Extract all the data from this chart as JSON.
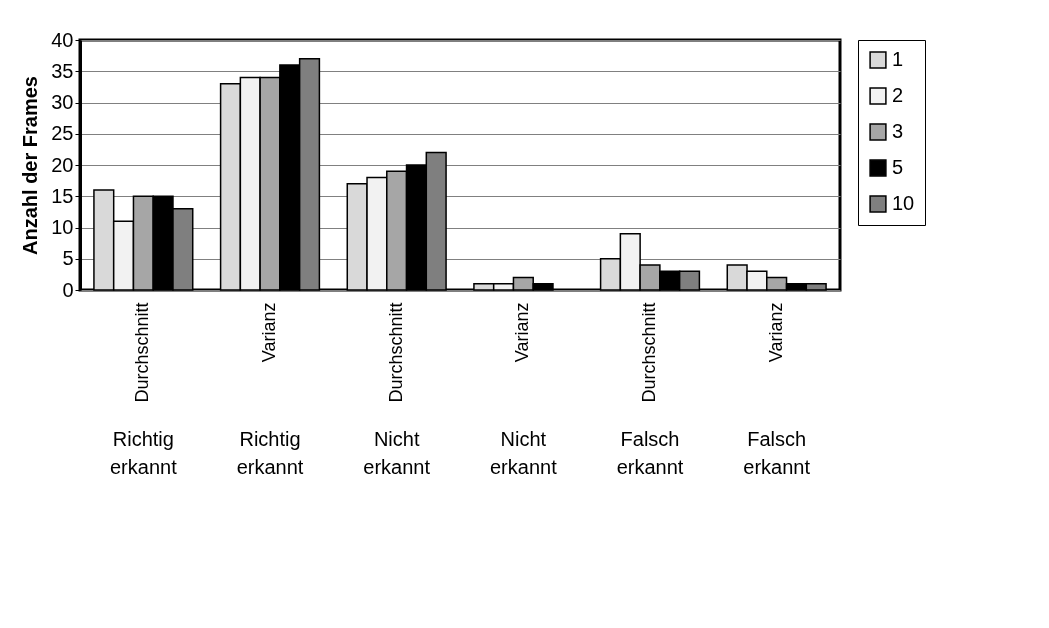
{
  "chart_data": {
    "type": "bar",
    "ylabel": "Anzahl der Frames",
    "categories": [
      "Durchschnitt",
      "Varianz",
      "Durchschnitt",
      "Varianz",
      "Durchschnitt",
      "Varianz"
    ],
    "annotations": [
      "Richtig erkannt",
      "Richtig erkannt",
      "Nicht erkannt",
      "Nicht erkannt",
      "Falsch erkannt",
      "Falsch erkannt"
    ],
    "series": [
      {
        "name": "1",
        "color": "#d9d9d9",
        "values": [
          16,
          33,
          17,
          1,
          5,
          4
        ]
      },
      {
        "name": "2",
        "color": "#f2f2f2",
        "values": [
          11,
          34,
          18,
          1,
          9,
          3
        ]
      },
      {
        "name": "3",
        "color": "#a6a6a6",
        "values": [
          15,
          34,
          19,
          2,
          4,
          2
        ]
      },
      {
        "name": "5",
        "color": "#000000",
        "values": [
          15,
          36,
          20,
          1,
          3,
          1
        ]
      },
      {
        "name": "10",
        "color": "#7f7f7f",
        "values": [
          13,
          37,
          22,
          null,
          3,
          1
        ]
      }
    ],
    "ylim": [
      0,
      40
    ],
    "yticks": [
      0,
      5,
      10,
      15,
      20,
      25,
      30,
      35,
      40
    ],
    "grid": "y",
    "legend": "right"
  }
}
